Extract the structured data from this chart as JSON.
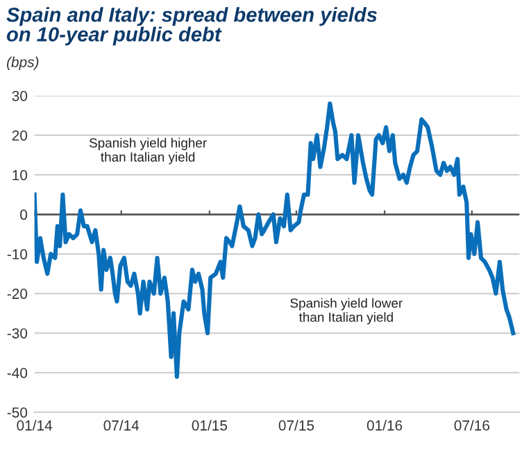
{
  "chart_data": {
    "type": "line",
    "title": "Spain and Italy: spread between yields\non 10-year public debt",
    "ylabel": "(bps)",
    "annotations": [
      "Spanish yield higher\nthan Italian yield",
      "Spanish yield lower\nthan Italian yield"
    ],
    "series": [
      {
        "color": "#0a6fba",
        "x": [
          "2014-01-01",
          "2014-01-06",
          "2014-01-13",
          "2014-01-20",
          "2014-01-28",
          "2014-02-04",
          "2014-02-13",
          "2014-02-18",
          "2014-02-23",
          "2014-03-01",
          "2014-03-07",
          "2014-03-14",
          "2014-03-23",
          "2014-03-31",
          "2014-04-07",
          "2014-04-14",
          "2014-04-21",
          "2014-05-01",
          "2014-05-08",
          "2014-05-15",
          "2014-05-20",
          "2014-05-25",
          "2014-05-31",
          "2014-06-08",
          "2014-06-13",
          "2014-06-18",
          "2014-06-22",
          "2014-06-29",
          "2014-07-07",
          "2014-07-14",
          "2014-07-21",
          "2014-07-28",
          "2014-08-05",
          "2014-08-09",
          "2014-08-16",
          "2014-08-24",
          "2014-08-29",
          "2014-09-07",
          "2014-09-14",
          "2014-09-21",
          "2014-09-29",
          "2014-10-06",
          "2014-10-13",
          "2014-10-18",
          "2014-10-25",
          "2014-10-30",
          "2014-11-08",
          "2014-11-18",
          "2014-11-26",
          "2014-12-02",
          "2014-12-09",
          "2014-12-17",
          "2014-12-21",
          "2014-12-28",
          "2015-01-03",
          "2015-01-14",
          "2015-01-24",
          "2015-01-29",
          "2015-02-05",
          "2015-02-12",
          "2015-02-17",
          "2015-02-27",
          "2015-03-05",
          "2015-03-13",
          "2015-03-23",
          "2015-03-31",
          "2015-04-06",
          "2015-04-13",
          "2015-04-20",
          "2015-04-25",
          "2015-05-04",
          "2015-05-14",
          "2015-05-20",
          "2015-05-28",
          "2015-06-05",
          "2015-06-12",
          "2015-06-19",
          "2015-06-26",
          "2015-07-06",
          "2015-07-10",
          "2015-07-17",
          "2015-07-25",
          "2015-07-31",
          "2015-08-05",
          "2015-08-13",
          "2015-08-20",
          "2015-08-28",
          "2015-09-03",
          "2015-09-09",
          "2015-09-16",
          "2015-09-20",
          "2015-09-25",
          "2015-10-05",
          "2015-10-14",
          "2015-10-24",
          "2015-10-30",
          "2015-11-07",
          "2015-11-17",
          "2015-11-24",
          "2015-12-01",
          "2015-12-06",
          "2015-12-14",
          "2015-12-20",
          "2015-12-28",
          "2016-01-04",
          "2016-01-11",
          "2016-01-18",
          "2016-01-23",
          "2016-02-01",
          "2016-02-09",
          "2016-02-16",
          "2016-02-23",
          "2016-03-01",
          "2016-03-09",
          "2016-03-18",
          "2016-03-25",
          "2016-03-31",
          "2016-04-09",
          "2016-04-18",
          "2016-04-26",
          "2016-05-03",
          "2016-05-10",
          "2016-05-17",
          "2016-05-25",
          "2016-06-01",
          "2016-06-05",
          "2016-06-13",
          "2016-06-20",
          "2016-06-24",
          "2016-06-29",
          "2016-07-06",
          "2016-07-13",
          "2016-07-20",
          "2016-07-28",
          "2016-08-06",
          "2016-08-13",
          "2016-08-20",
          "2016-08-28",
          "2016-09-03",
          "2016-09-11",
          "2016-09-17",
          "2016-09-25"
        ],
        "values": [
          5,
          -12,
          -6,
          -11,
          -15,
          -10,
          -11,
          -3,
          -8,
          5,
          -7,
          -5,
          -6,
          -5,
          1,
          -3,
          -3,
          -7,
          -4,
          -10,
          -19,
          -9,
          -14,
          -11,
          -15,
          -20,
          -22,
          -13,
          -11,
          -17,
          -18,
          -15,
          -20,
          -25,
          -17,
          -24,
          -17,
          -20,
          -11,
          -20,
          -16,
          -22,
          -36,
          -25,
          -41,
          -30,
          -22,
          -24,
          -14,
          -17,
          -15,
          -19,
          -25,
          -30,
          -16,
          -15,
          -12,
          -16,
          -6,
          -7,
          -8,
          -2,
          2,
          -3,
          -4,
          -8,
          -6,
          0,
          -5,
          -4,
          -2,
          0,
          -7,
          -1,
          -3,
          5,
          -4,
          -3,
          -2,
          1,
          5,
          5,
          18,
          14,
          20,
          12,
          17,
          22,
          28,
          23,
          21,
          14,
          15,
          14,
          20,
          8,
          20,
          13,
          9,
          6,
          5,
          19,
          20,
          18,
          22,
          16,
          20,
          13,
          9,
          10,
          8,
          12,
          15,
          16,
          24,
          23,
          22,
          17,
          11,
          10,
          13,
          11,
          12,
          10,
          14,
          5,
          7,
          3,
          -11,
          -5,
          -10,
          -2,
          -11,
          -12,
          -14,
          -16,
          -20,
          -12,
          -19,
          -24,
          -26,
          -30
        ]
      }
    ],
    "xlim": [
      "2014-01-01",
      "2016-10-08"
    ],
    "xticks": [
      {
        "value": "2014-01-01",
        "label": "01/14"
      },
      {
        "value": "2014-07-01",
        "label": "07/14"
      },
      {
        "value": "2015-01-01",
        "label": "01/15"
      },
      {
        "value": "2015-07-01",
        "label": "07/15"
      },
      {
        "value": "2016-01-01",
        "label": "01/16"
      },
      {
        "value": "2016-07-01",
        "label": "07/16"
      }
    ],
    "ylim": [
      -50,
      30
    ],
    "yticks": [
      -50,
      -40,
      -30,
      -20,
      -10,
      0,
      10,
      20,
      30
    ],
    "ref_lines": [
      {
        "axis": "y",
        "value": 0,
        "color": "#555555"
      }
    ],
    "grid": "y",
    "legend": false
  }
}
